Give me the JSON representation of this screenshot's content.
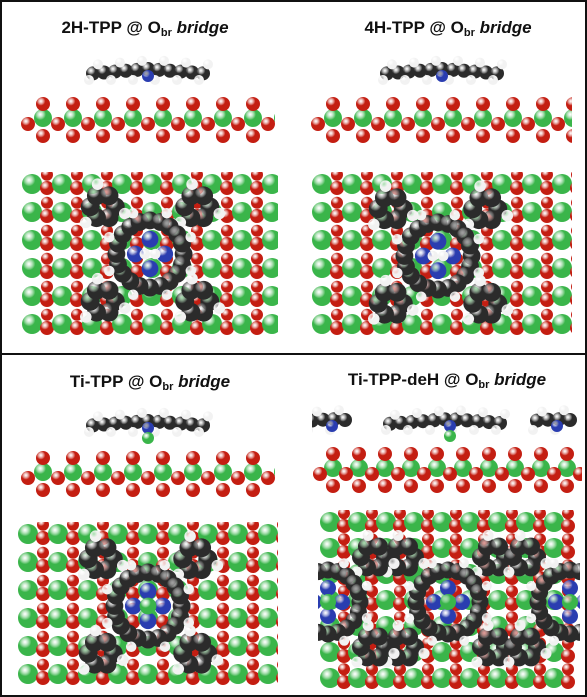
{
  "figure": {
    "panels": [
      {
        "id": "2h-tpp",
        "title_main": "2H-TPP @ O",
        "title_sub": "br",
        "title_site": "bridge"
      },
      {
        "id": "4h-tpp",
        "title_main": "4H-TPP @ O",
        "title_sub": "br",
        "title_site": "bridge"
      },
      {
        "id": "ti-tpp",
        "title_main": "Ti-TPP @ O",
        "title_sub": "br",
        "title_site": "bridge"
      },
      {
        "id": "ti-tpp-deh",
        "title_main": "Ti-TPP-deH @ O",
        "title_sub": "br",
        "title_site": "bridge"
      }
    ],
    "colors": {
      "carbon": "#2b2b2b",
      "hydrogen": "#f2f2f2",
      "nitrogen": "#2a3db0",
      "oxygen": "#c41e12",
      "titanium": "#3ab54a",
      "frame": "#111111"
    }
  }
}
